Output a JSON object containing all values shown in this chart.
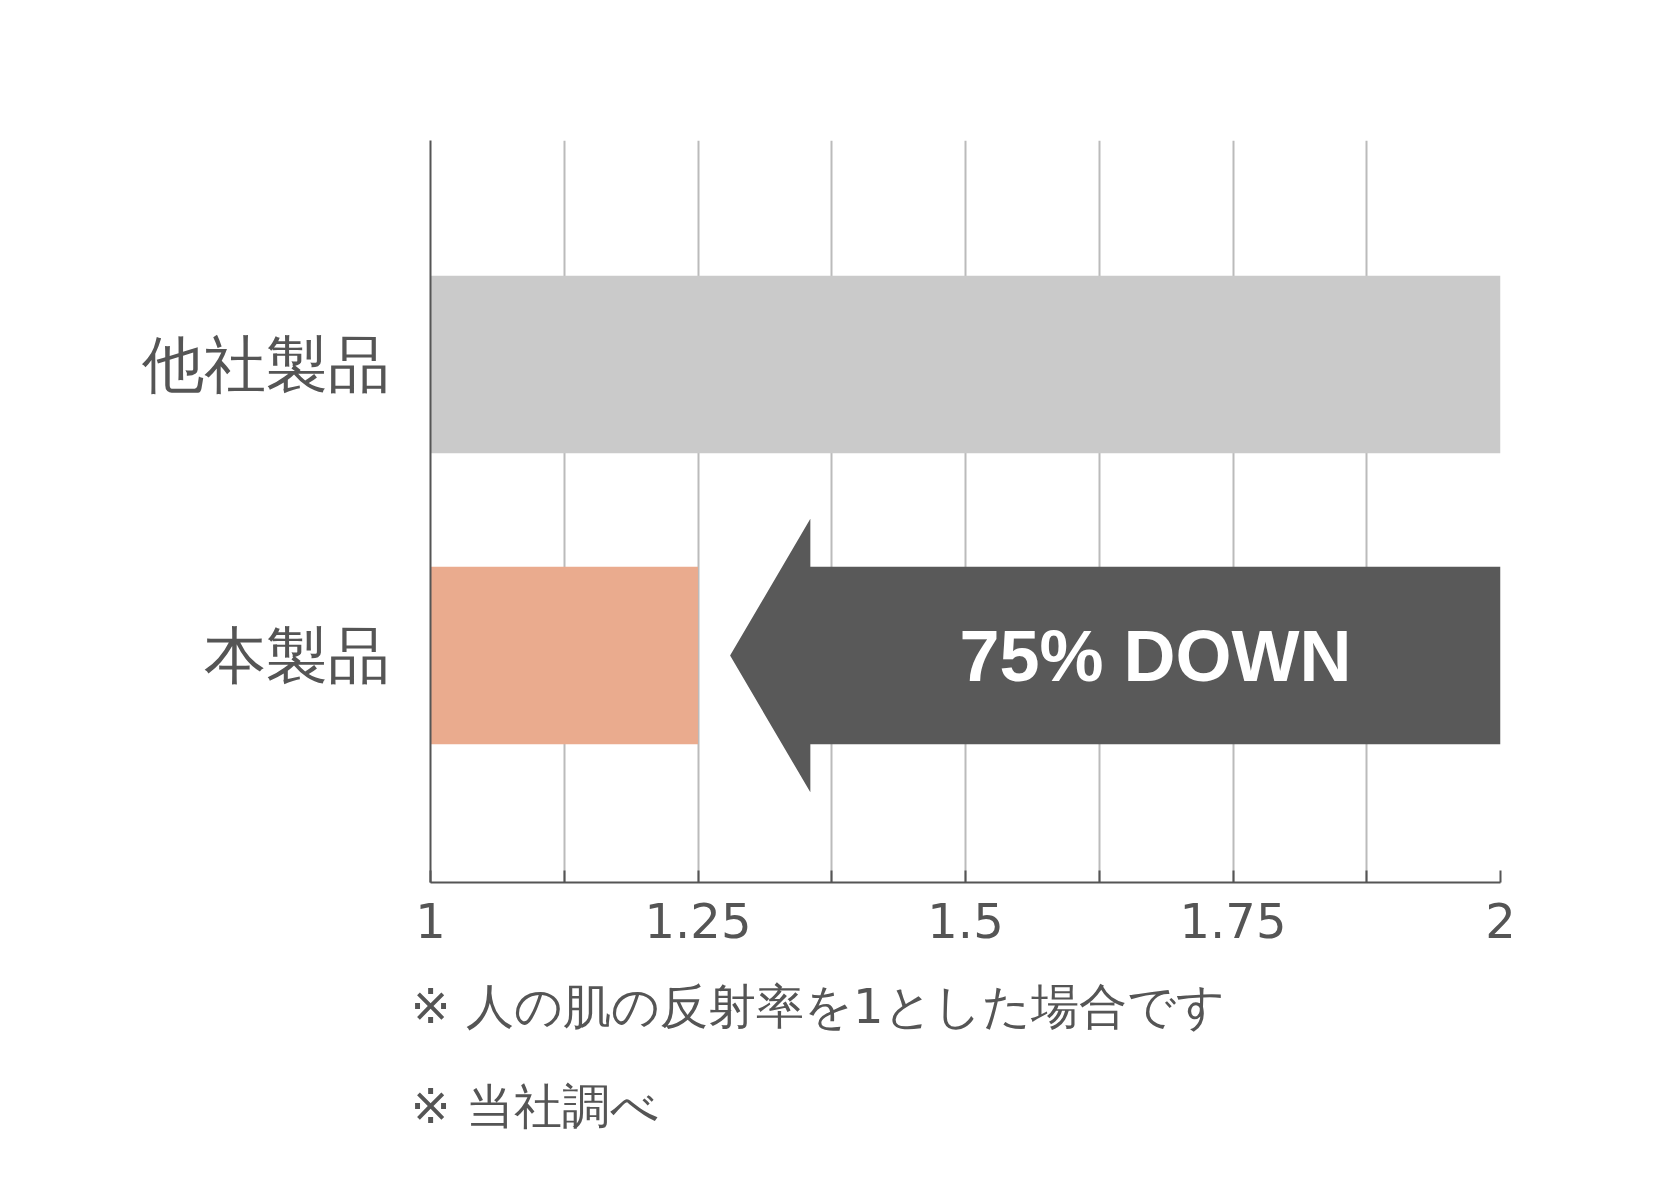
{
  "chart_data": {
    "type": "bar",
    "orientation": "horizontal",
    "categories": [
      "他社製品",
      "本製品"
    ],
    "values": [
      2,
      1.25
    ],
    "colors": [
      "#cacaca",
      "#eaab8e"
    ],
    "xlim": [
      1,
      2
    ],
    "xticks": [
      1,
      {
        "value": 1.125,
        "label": null
      },
      1.25,
      {
        "value": 1.375,
        "label": null
      },
      1.5,
      {
        "value": 1.625,
        "label": null
      },
      1.75,
      {
        "value": 1.875,
        "label": null
      },
      2
    ],
    "grid": "x",
    "annotations": [
      "75% DOWN",
      "※ 人の肌の反射率を1とした場合です",
      "※ 当社調べ"
    ]
  }
}
